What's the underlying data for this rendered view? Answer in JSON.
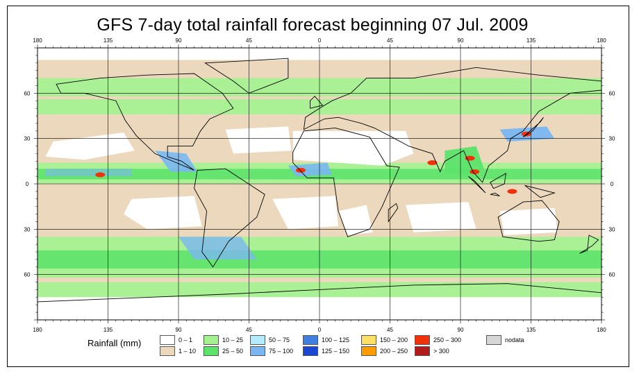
{
  "title": "GFS 7-day total rainfall forecast beginning 07 Jul. 2009",
  "axes": {
    "top_lon_labels": [
      "180",
      "135",
      "90",
      "45",
      "0",
      "45",
      "90",
      "135",
      "180"
    ],
    "bottom_lon_labels": [
      "180",
      "135",
      "90",
      "45",
      "0",
      "45",
      "90",
      "135",
      "180"
    ],
    "left_lat_labels": [
      "60",
      "30",
      "0",
      "30",
      "60"
    ],
    "right_lat_labels": [
      "60",
      "30",
      "0",
      "30",
      "60"
    ],
    "lon_values": [
      -180,
      -135,
      -90,
      -45,
      0,
      45,
      90,
      135,
      180
    ],
    "lat_values": [
      60,
      30,
      0,
      -30,
      -60
    ]
  },
  "legend": {
    "title": "Rainfall (mm)",
    "items": [
      {
        "label": "0 – 1",
        "color": "#ffffff"
      },
      {
        "label": "1 – 10",
        "color": "#ecd9bd"
      },
      {
        "label": "10 – 25",
        "color": "#a3f28f"
      },
      {
        "label": "25 – 50",
        "color": "#5de36a"
      },
      {
        "label": "50 – 75",
        "color": "#b3ebff"
      },
      {
        "label": "75 – 100",
        "color": "#7ab7f2"
      },
      {
        "label": "100 – 125",
        "color": "#3e7fe0"
      },
      {
        "label": "125 – 150",
        "color": "#1a46d0"
      },
      {
        "label": "150 – 200",
        "color": "#ffe066"
      },
      {
        "label": "200 – 250",
        "color": "#ff9c00"
      },
      {
        "label": "250 – 300",
        "color": "#f0320a"
      },
      {
        "label": "> 300",
        "color": "#b01c1c"
      },
      {
        "label": "nodata",
        "color": "#d6d6d6"
      }
    ]
  },
  "colors": {
    "ocean_default": "#ecd9bd",
    "dry": "#ffffff",
    "light": "#a3f28f",
    "moderate": "#5de36a",
    "heavy": "#7ab7f2",
    "extreme": "#f0320a",
    "grid": "#000000",
    "coast": "#000000"
  }
}
